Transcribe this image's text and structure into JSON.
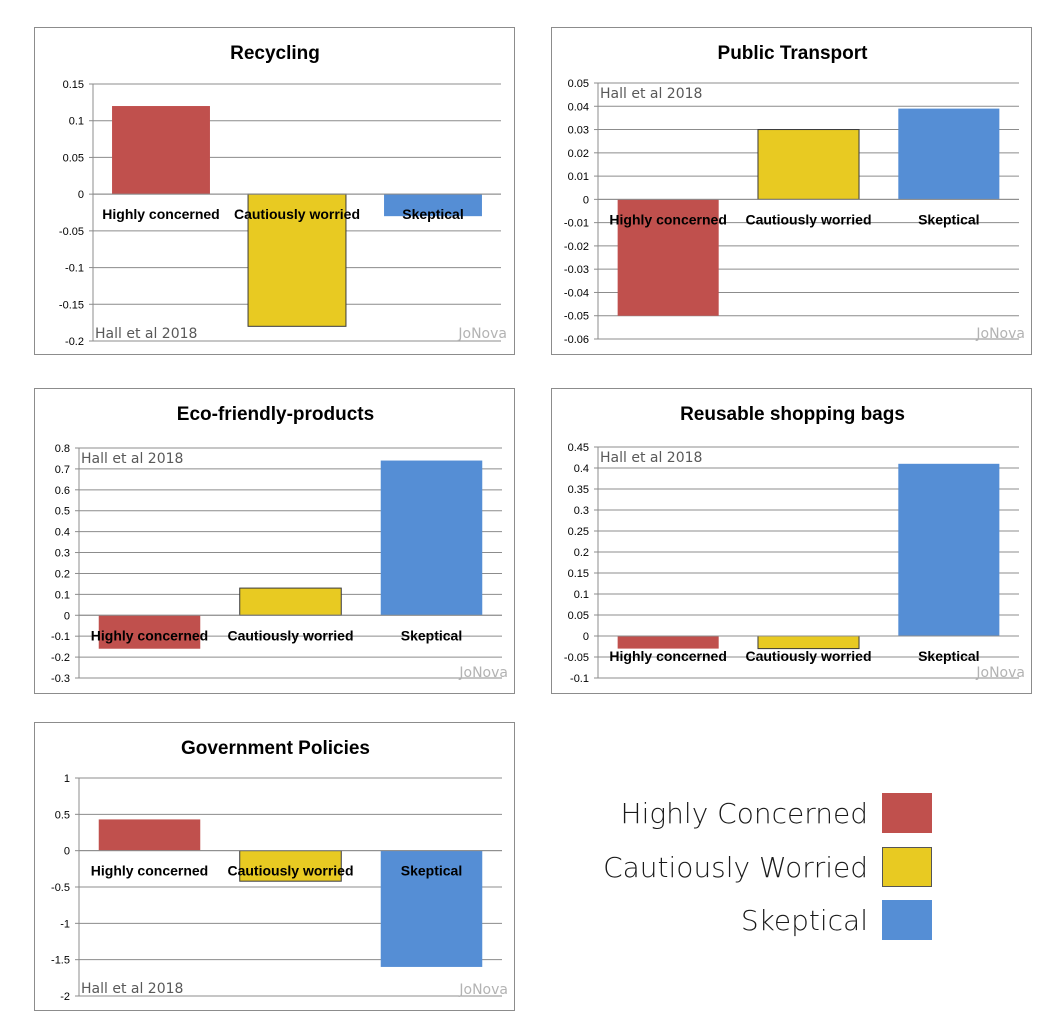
{
  "colors": {
    "highly": "#c0504d",
    "cautious": "#e8ca22",
    "skeptical": "#558ed5",
    "grid": "#8c8c8c"
  },
  "chart_data": [
    {
      "type": "bar",
      "title": "Recycling",
      "categories": [
        "Highly concerned",
        "Cautiously worried",
        "Skeptical"
      ],
      "values": [
        0.12,
        -0.18,
        -0.03
      ],
      "ylim": [
        -0.2,
        0.15
      ],
      "yticks": [
        0.15,
        0.1,
        0.05,
        0,
        -0.05,
        -0.1,
        -0.15,
        -0.2
      ],
      "ytick_labels": [
        "0.15",
        "0.1",
        "0.05",
        "0",
        "-0.05",
        "-0.1",
        "-0.15",
        "-0.2"
      ],
      "source": "Hall et al 2018",
      "watermark": "JoNova",
      "grid": true
    },
    {
      "type": "bar",
      "title": "Public Transport",
      "categories": [
        "Highly concerned",
        "Cautiously worried",
        "Skeptical"
      ],
      "values": [
        -0.05,
        0.03,
        0.039
      ],
      "ylim": [
        -0.06,
        0.05
      ],
      "yticks": [
        0.05,
        0.04,
        0.03,
        0.02,
        0.01,
        0,
        -0.01,
        -0.02,
        -0.03,
        -0.04,
        -0.05,
        -0.06
      ],
      "ytick_labels": [
        "0.05",
        "0.04",
        "0.03",
        "0.02",
        "0.01",
        "0",
        "-0.01",
        "-0.02",
        "-0.03",
        "-0.04",
        "-0.05",
        "-0.06"
      ],
      "source": "Hall et al 2018",
      "watermark": "JoNova",
      "grid": true
    },
    {
      "type": "bar",
      "title": "Eco-friendly-products",
      "categories": [
        "Highly concerned",
        "Cautiously worried",
        "Skeptical"
      ],
      "values": [
        -0.16,
        0.13,
        0.74
      ],
      "ylim": [
        -0.3,
        0.8
      ],
      "yticks": [
        0.8,
        0.7,
        0.6,
        0.5,
        0.4,
        0.3,
        0.2,
        0.1,
        0,
        -0.1,
        -0.2,
        -0.3
      ],
      "ytick_labels": [
        "0.8",
        "0.7",
        "0.6",
        "0.5",
        "0.4",
        "0.3",
        "0.2",
        "0.1",
        "0",
        "-0.1",
        "-0.2",
        "-0.3"
      ],
      "source": "Hall et al 2018",
      "watermark": "JoNova",
      "grid": true
    },
    {
      "type": "bar",
      "title": "Reusable shopping bags",
      "categories": [
        "Highly concerned",
        "Cautiously worried",
        "Skeptical"
      ],
      "values": [
        -0.03,
        -0.03,
        0.41
      ],
      "ylim": [
        -0.1,
        0.45
      ],
      "yticks": [
        0.45,
        0.4,
        0.35,
        0.3,
        0.25,
        0.2,
        0.15,
        0.1,
        0.05,
        0,
        -0.05,
        -0.1
      ],
      "ytick_labels": [
        "0.45",
        "0.4",
        "0.35",
        "0.3",
        "0.25",
        "0.2",
        "0.15",
        "0.1",
        "0.05",
        "0",
        "-0.05",
        "-0.1"
      ],
      "source": "Hall et al 2018",
      "watermark": "JoNova",
      "grid": true
    },
    {
      "type": "bar",
      "title": "Government Policies",
      "categories": [
        "Highly concerned",
        "Cautiously worried",
        "Skeptical"
      ],
      "values": [
        0.43,
        -0.42,
        -1.6
      ],
      "ylim": [
        -2,
        1
      ],
      "yticks": [
        1,
        0.5,
        0,
        -0.5,
        -1,
        -1.5,
        -2
      ],
      "ytick_labels": [
        "1",
        "0.5",
        "0",
        "-0.5",
        "-1",
        "-1.5",
        "-2"
      ],
      "source": "Hall et al 2018",
      "watermark": "JoNova",
      "grid": true
    }
  ],
  "legend": [
    {
      "label": "Highly Concerned",
      "color": "#c0504d"
    },
    {
      "label": "Cautiously Worried",
      "color": "#e8ca22"
    },
    {
      "label": "Skeptical",
      "color": "#558ed5"
    }
  ]
}
